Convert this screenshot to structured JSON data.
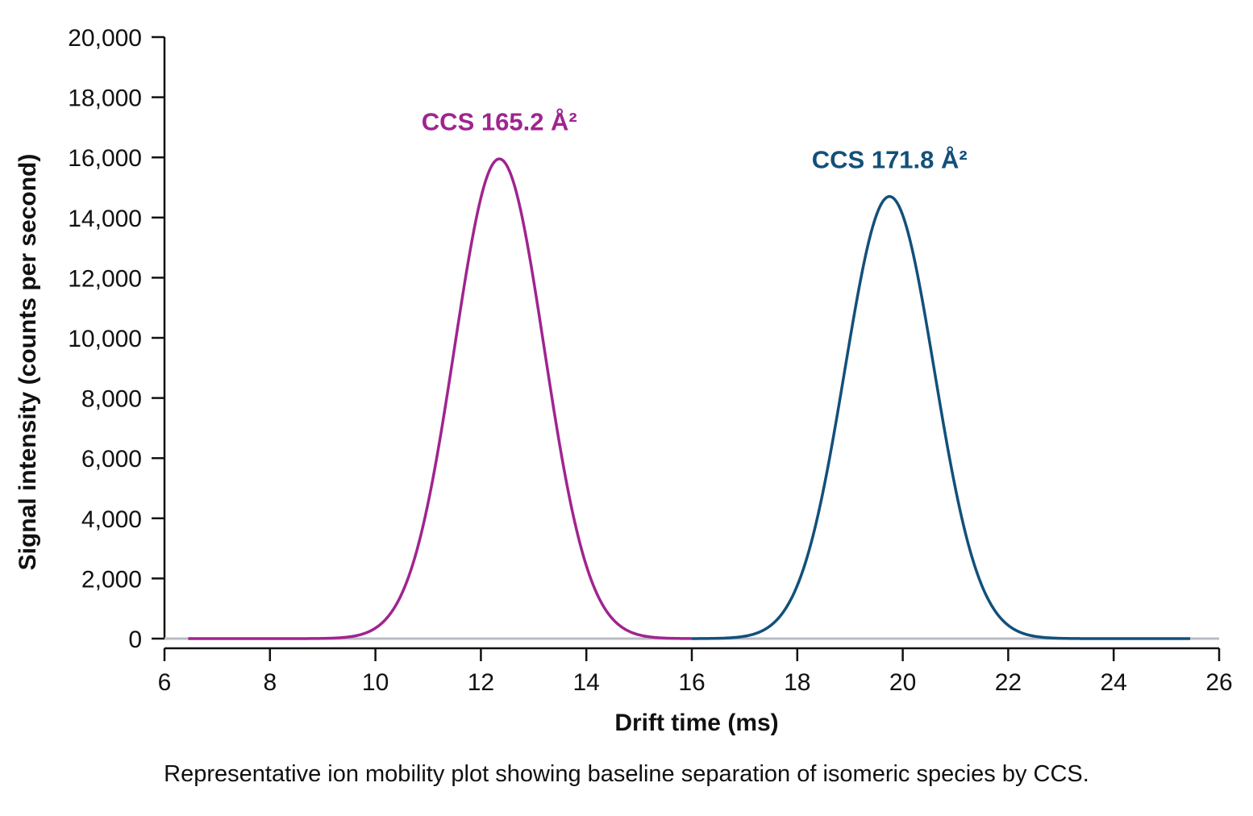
{
  "chart_data": {
    "type": "line",
    "xlabel": "Drift time (ms)",
    "ylabel": "Signal intensity (counts per second)",
    "xlim": [
      6,
      26
    ],
    "ylim": [
      0,
      20000
    ],
    "x_ticks": [
      "6",
      "8",
      "10",
      "12",
      "14",
      "16",
      "18",
      "20",
      "22",
      "24",
      "26"
    ],
    "y_ticks": [
      "0",
      "2,000",
      "4,000",
      "6,000",
      "8,000",
      "10,000",
      "12,000",
      "14,000",
      "16,000",
      "18,000",
      "20,000"
    ],
    "grid": false,
    "legend": "none",
    "series": [
      {
        "color": "#a0248f",
        "peak_x": 12.35,
        "peak_y": 15950,
        "sigma": 0.85,
        "x_range": [
          6.45,
          16.0
        ]
      },
      {
        "color": "#12507a",
        "peak_x": 19.75,
        "peak_y": 14700,
        "sigma": 0.85,
        "x_range": [
          16.0,
          25.45
        ]
      }
    ],
    "annotations": [
      {
        "text": "CCS 165.2 Å²",
        "color": "#a0248f",
        "x": 12.35,
        "y": 16900
      },
      {
        "text": "CCS 171.8 Å²",
        "color": "#12507a",
        "x": 19.75,
        "y": 15650
      }
    ],
    "baseline_color": "#b8bcc4"
  },
  "caption": "Representative ion mobility plot showing baseline separation of isomeric species by CCS."
}
